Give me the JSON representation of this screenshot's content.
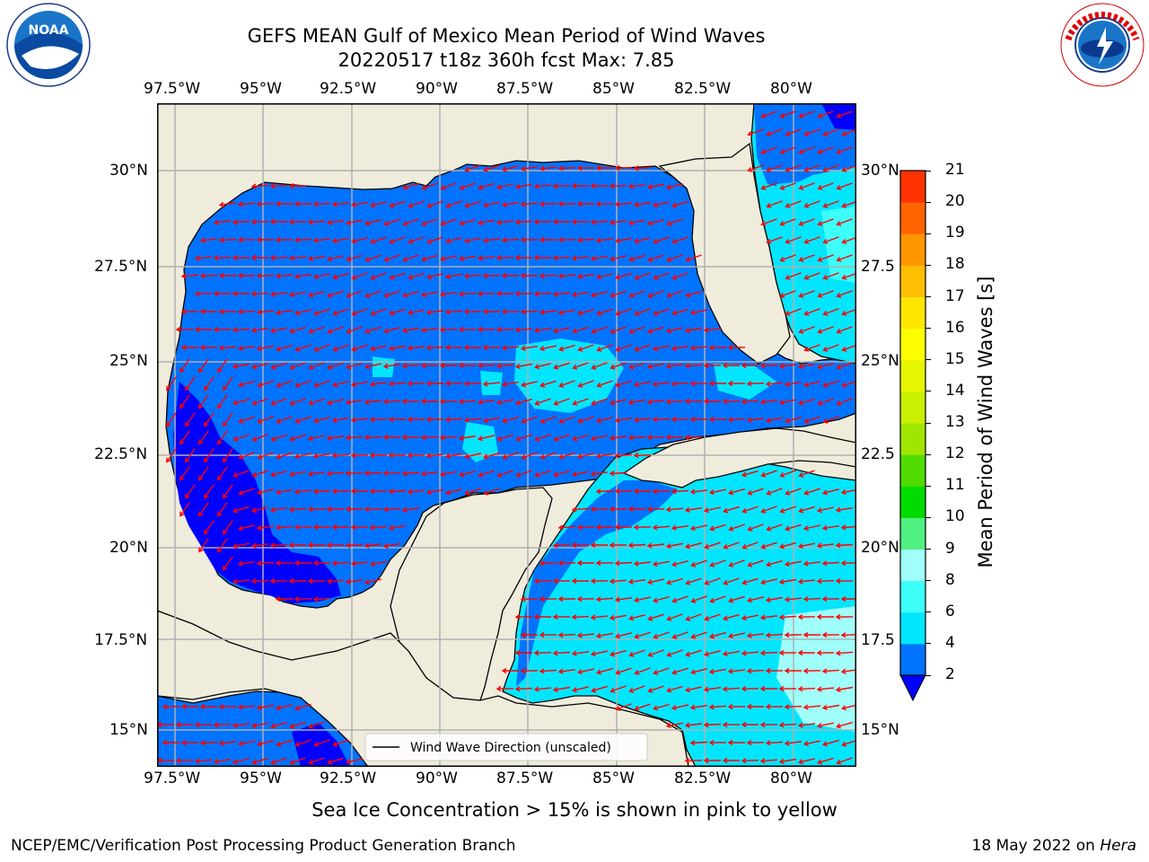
{
  "title": {
    "line1": "GEFS MEAN Gulf of Mexico Mean Period of Wind Waves",
    "line2": "20220517 t18z 360h fcst   Max: 7.85"
  },
  "logos": {
    "left": "noaa-logo",
    "left_text": "NOAA",
    "right": "nws-logo",
    "right_text": "NATIONAL WEATHER SERVICE"
  },
  "map": {
    "lon_labels": [
      "97.5°W",
      "95°W",
      "92.5°W",
      "90°W",
      "87.5°W",
      "85°W",
      "82.5°W",
      "80°W"
    ],
    "lat_labels_left": [
      "30°N",
      "27.5°N",
      "25°N",
      "22.5°N",
      "20°N",
      "17.5°N",
      "15°N"
    ],
    "lat_labels_right": [
      "30°N",
      "27.5",
      "25°N",
      "22.5",
      "20°N",
      "17.5",
      "15°N"
    ],
    "lon_range": [
      -98,
      -78.3
    ],
    "lat_range": [
      14.1,
      31.7
    ],
    "land_color": "#efecdc",
    "grid_color": "#b0b0b0",
    "arrow_color": "#ff0000",
    "legend_label": "Wind Wave Direction (unscaled)"
  },
  "colorbar": {
    "label": "Mean Period of Wind Waves [s]",
    "ticks": [
      "2",
      "4",
      "6",
      "8",
      "9",
      "10",
      "11",
      "12",
      "13",
      "14",
      "15",
      "16",
      "17",
      "18",
      "19",
      "20",
      "21"
    ],
    "colors": [
      "#0073ff",
      "#00e6ff",
      "#3cfffa",
      "#a0fffa",
      "#50f080",
      "#00dc00",
      "#50dc00",
      "#a0e600",
      "#c8f000",
      "#e6f500",
      "#ffff00",
      "#ffe600",
      "#ffbe00",
      "#ff9600",
      "#ff6400",
      "#ff3200"
    ],
    "extend_color": "#0000ff"
  },
  "caption": "Sea Ice Concentration > 15% is shown in pink to yellow",
  "footer": {
    "left": "NCEP/EMC/Verification Post Processing Product Generation Branch",
    "date": "18 May 2022 on ",
    "machine": "Hera"
  }
}
